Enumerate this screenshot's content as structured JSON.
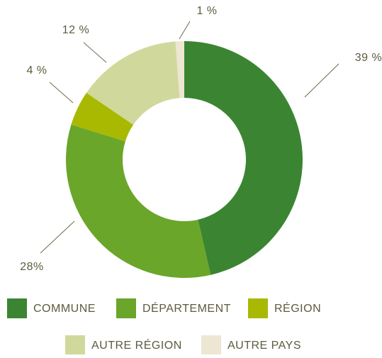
{
  "chart_data": {
    "type": "donut",
    "categories": [
      "COMMUNE",
      "DÉPARTEMENT",
      "RÉGION",
      "AUTRE RÉGION",
      "AUTRE PAYS"
    ],
    "values": [
      39,
      28,
      4,
      12,
      1
    ],
    "value_labels": [
      "39 %",
      "28%",
      "4 %",
      "12 %",
      "1 %"
    ],
    "colors": [
      "#3b8532",
      "#6aa629",
      "#a9b800",
      "#d1d89c",
      "#ede6d2"
    ],
    "legend": "bottom"
  }
}
